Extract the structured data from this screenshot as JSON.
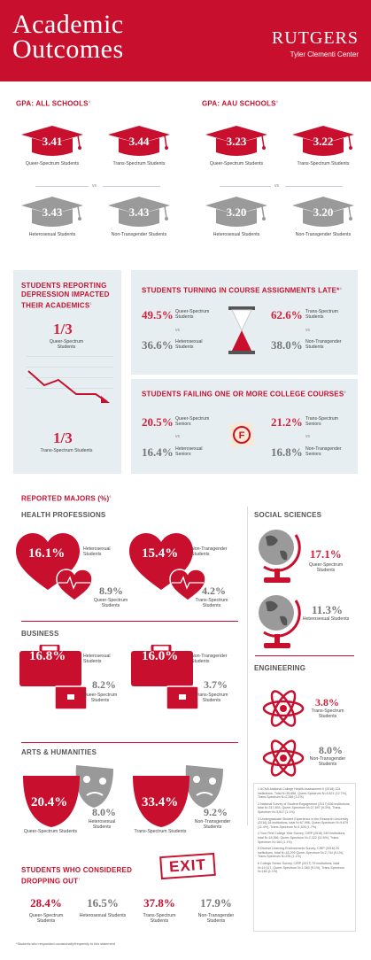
{
  "header": {
    "title_line1": "Academic",
    "title_line2": "Outcomes",
    "brand": "RUTGERS",
    "center": "Tyler Clementi Center"
  },
  "gpa_all": {
    "title": "GPA: ALL SCHOOLS",
    "sup": "2",
    "items": [
      {
        "value": "3.41",
        "label": "Queer-Spectrum Students"
      },
      {
        "value": "3.44",
        "label": "Trans-Spectrum Students"
      },
      {
        "value": "3.43",
        "label": "Heterosexual Students"
      },
      {
        "value": "3.43",
        "label": "Non-Transgender Students"
      }
    ]
  },
  "gpa_aau": {
    "title": "GPA: AAU SCHOOLS",
    "sup": "3",
    "items": [
      {
        "value": "3.23",
        "label": "Queer-Spectrum Students"
      },
      {
        "value": "3.22",
        "label": "Trans-Spectrum Students"
      },
      {
        "value": "3.20",
        "label": "Heterosexual Students"
      },
      {
        "value": "3.20",
        "label": "Non-Transgender Students"
      }
    ]
  },
  "vs": "vs",
  "depression": {
    "title": "STUDENTS REPORTING DEPRESSION IMPACTED THEIR ACADEMICS",
    "sup": "1",
    "q": {
      "num": "1",
      "den": "3",
      "label": "Queer-Spectrum Students"
    },
    "t": {
      "num": "1",
      "den": "3",
      "label": "Trans-Spectrum Students"
    }
  },
  "late": {
    "title": "STUDENTS TURNING IN COURSE ASSIGNMENTS LATE*",
    "sup": "4",
    "a1": {
      "value": "49.5%",
      "label": "Queer-Spectrum Students"
    },
    "a2": {
      "value": "36.6%",
      "label": "Heterosexual Students"
    },
    "b1": {
      "value": "62.6%",
      "label": "Trans-Spectrum Students"
    },
    "b2": {
      "value": "38.0%",
      "label": "Non-Transgender Students"
    }
  },
  "failing": {
    "title": "STUDENTS FAILING ONE OR MORE COLLEGE COURSES",
    "sup": "5",
    "a1": {
      "value": "20.5%",
      "label": "Queer-Spectrum Seniors"
    },
    "a2": {
      "value": "16.4%",
      "label": "Heterosexual Seniors"
    },
    "b1": {
      "value": "21.2%",
      "label": "Trans-Spectrum Seniors"
    },
    "b2": {
      "value": "16.8%",
      "label": "Non-Transgender Seniors"
    }
  },
  "majors": {
    "title": "REPORTED MAJORS (%)",
    "sup": "6",
    "health": {
      "title": "HEALTH PROFESSIONS",
      "a": {
        "value": "16.1%",
        "label": "Heterosexual Students"
      },
      "b": {
        "value": "8.9%",
        "label": "Queer-Spectrum Students"
      },
      "c": {
        "value": "15.4%",
        "label": "Non-Transgender Students"
      },
      "d": {
        "value": "4.2%",
        "label": "Trans-Spectrum Students"
      }
    },
    "business": {
      "title": "BUSINESS",
      "a": {
        "value": "16.8%",
        "label": "Heterosexual Students"
      },
      "b": {
        "value": "8.2%",
        "label": "Queer-Spectrum Students"
      },
      "c": {
        "value": "16.0%",
        "label": "Non-Transgender Students"
      },
      "d": {
        "value": "3.7%",
        "label": "Trans-Spectrum Students"
      }
    },
    "arts": {
      "title": "ARTS & HUMANITIES",
      "a": {
        "value": "20.4%",
        "label": "Queer-Spectrum Students"
      },
      "b": {
        "value": "8.0%",
        "label": "Heterosexual Students"
      },
      "c": {
        "value": "33.4%",
        "label": "Trans-Spectrum Students"
      },
      "d": {
        "value": "9.2%",
        "label": "Non-Transgender Students"
      }
    },
    "social": {
      "title": "SOCIAL SCIENCES",
      "a": {
        "value": "17.1%",
        "label": "Queer-Spectrum Students"
      },
      "b": {
        "value": "11.3%",
        "label": "Heterosexual Students"
      }
    },
    "engineering": {
      "title": "ENGINEERING",
      "a": {
        "value": "3.8%",
        "label": "Trans-Spectrum Students"
      },
      "b": {
        "value": "8.0%",
        "label": "Non-Transgender Students"
      }
    }
  },
  "dropout": {
    "title": "STUDENTS WHO CONSIDERED DROPPING OUT",
    "sup": "7",
    "exit": "EXIT",
    "items": [
      {
        "value": "28.4%",
        "label": "Queer-Spectrum Students"
      },
      {
        "value": "16.5%",
        "label": "Heterosexual Students"
      },
      {
        "value": "37.8%",
        "label": "Trans-Spectrum Students"
      },
      {
        "value": "17.9%",
        "label": "Non-Transgender Students"
      }
    ]
  },
  "footnote": "*Students who responded occasionally/frequently to this statement",
  "sources": [
    "1 ACHA-National College Health Assessment II (2018) 124 institutions. Total N=39,666, Queer-Spectrum N=4,821 (12.7%), Trans-Spectrum N=2,266 (3.1%)",
    "2 National Survey of Student Engagement (2017) 636 institutions, total N=317,893, Queer-Spectrum N=27,697 (9.3%), Trans-Spectrum N=3,517 (1.1%)",
    "3 Undergraduate Student Experience in the Research University (2016) 18 institutions, total N=67,996, Queer-Spectrum N=9,879 (11.4%), Trans-Spectrum N=1,526 (1.7%)",
    "4 Your First College Year Survey, CIRP (2016) 249 institutions, total N=18,366, Queer-Spectrum N=2,322 (11.6%), Trans-Spectrum N=164 (1.1%)",
    "5 Diverse Learning Environments Survey, CIRP (2016) 25 institutions, total N=18,299 Queer-Spectrum N=2,744 (9.1%), Trans-Spectrum N=226 (1.1%)",
    "6 College Senior Survey, CIRP (2017) 75 institutions, total N=10,117, Queer-Spectrum N=1,083 (9.1%), Trans-Spectrum N=160 (1.1%)"
  ],
  "colors": {
    "accent": "#c8102e",
    "gray_cap": "#9a9a9a",
    "panel": "#e6eef1"
  }
}
